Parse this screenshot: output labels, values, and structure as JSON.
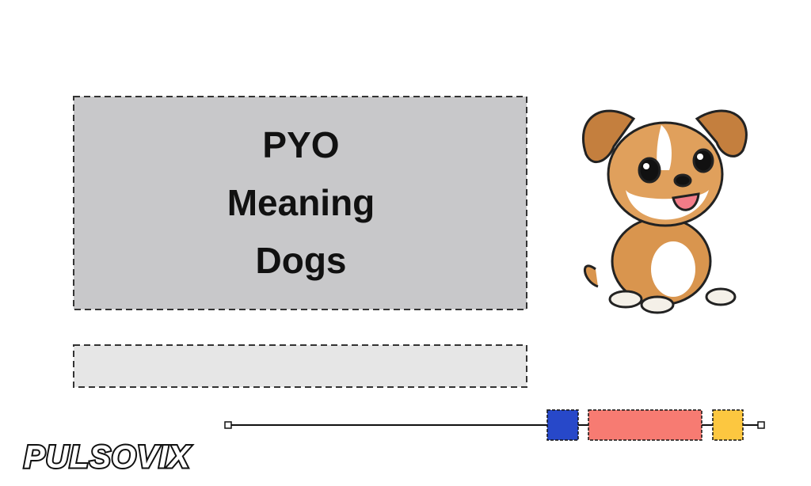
{
  "title_lines": [
    "PYO",
    "Meaning",
    "Dogs"
  ],
  "logo": "PULSOVIX"
}
